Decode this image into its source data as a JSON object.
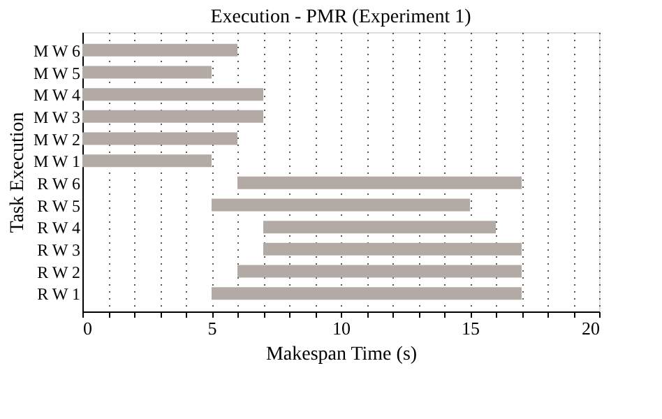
{
  "chart_data": {
    "type": "bar",
    "orientation": "horizontal",
    "title": "Execution - PMR (Experiment 1)",
    "xlabel": "Makespan Time (s)",
    "ylabel": "Task Execution",
    "categories": [
      "M W 6",
      "M W 5",
      "M W 4",
      "M W 3",
      "M W 2",
      "M W 1",
      "R W 6",
      "R W 5",
      "R W 4",
      "R W 3",
      "R W 2",
      "R W 1"
    ],
    "base": [
      0,
      0,
      0,
      0,
      0,
      0,
      6,
      5,
      7,
      7,
      6,
      5
    ],
    "values": [
      6,
      5,
      7,
      7,
      6,
      5,
      11,
      10,
      9,
      10,
      11,
      12
    ],
    "color": "#b3aaa6",
    "xlim": [
      0,
      20
    ],
    "xticks": [
      0,
      {
        "value": 1,
        "label": null
      },
      {
        "value": 2,
        "label": null
      },
      {
        "value": 3,
        "label": null
      },
      {
        "value": 4,
        "label": null
      },
      5,
      {
        "value": 6,
        "label": null
      },
      {
        "value": 7,
        "label": null
      },
      {
        "value": 8,
        "label": null
      },
      {
        "value": 9,
        "label": null
      },
      10,
      {
        "value": 11,
        "label": null
      },
      {
        "value": 12,
        "label": null
      },
      {
        "value": 13,
        "label": null
      },
      {
        "value": 14,
        "label": null
      },
      15,
      {
        "value": 16,
        "label": null
      },
      {
        "value": 17,
        "label": null
      },
      {
        "value": 18,
        "label": null
      },
      {
        "value": 19,
        "label": null
      },
      20
    ],
    "grid": "x"
  }
}
